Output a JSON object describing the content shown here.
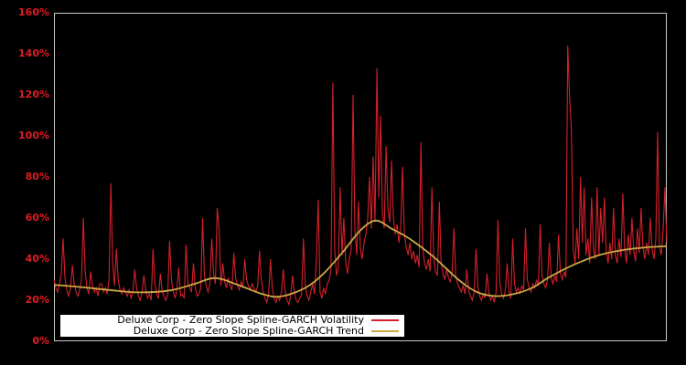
{
  "window": {
    "background_color": "#000000",
    "plot_border_color": "#c9c9c9",
    "axis_label_color": "#e01b24",
    "legend_background": "#ffffff",
    "legend_text_color": "#000000"
  },
  "chart_data": {
    "type": "line",
    "title": "",
    "xlabel": "",
    "ylabel": "",
    "ylim": [
      0,
      160
    ],
    "y_tick_step": 20,
    "y_ticks": [
      "0%",
      "20%",
      "40%",
      "60%",
      "80%",
      "100%",
      "120%",
      "140%",
      "160%"
    ],
    "x_tick_labels_visible": false,
    "grid": false,
    "legend_position": "bottom-left",
    "unit": "percent",
    "series": [
      {
        "name": "Deluxe Corp - Zero Slope Spline-GARCH Volatility",
        "color": "#d4202a",
        "style": "spiky-line",
        "values": [
          30,
          26,
          24,
          28,
          33,
          50,
          31,
          25,
          22,
          26,
          37,
          28,
          24,
          22,
          25,
          30,
          60,
          34,
          26,
          23,
          34,
          27,
          24,
          26,
          22,
          28,
          28,
          24,
          26,
          23,
          30,
          77,
          38,
          27,
          45,
          30,
          25,
          23,
          26,
          24,
          22,
          25,
          21,
          24,
          35,
          26,
          22,
          20,
          24,
          32,
          25,
          21,
          23,
          20,
          45,
          28,
          23,
          21,
          33,
          24,
          22,
          20,
          23,
          49,
          30,
          24,
          21,
          25,
          36,
          22,
          23,
          21,
          47,
          28,
          26,
          24,
          38,
          26,
          22,
          23,
          26,
          60,
          32,
          27,
          24,
          28,
          50,
          33,
          28,
          65,
          55,
          27,
          38,
          29,
          26,
          31,
          27,
          25,
          43,
          31,
          27,
          25,
          29,
          26,
          40,
          30,
          27,
          25,
          28,
          26,
          24,
          27,
          44,
          30,
          24,
          21,
          19,
          23,
          40,
          26,
          21,
          19,
          22,
          20,
          24,
          35,
          24,
          20,
          18,
          22,
          32,
          24,
          20,
          19,
          21,
          23,
          50,
          27,
          22,
          20,
          24,
          28,
          23,
          40,
          69,
          24,
          21,
          26,
          23,
          28,
          30,
          35,
          126,
          45,
          32,
          36,
          75,
          42,
          60,
          38,
          33,
          40,
          45,
          120,
          55,
          42,
          68,
          45,
          40,
          48,
          52,
          60,
          80,
          55,
          90,
          58,
          133,
          70,
          110,
          62,
          55,
          95,
          65,
          58,
          88,
          60,
          52,
          57,
          48,
          55,
          85,
          52,
          46,
          42,
          48,
          40,
          44,
          38,
          42,
          36,
          97,
          45,
          38,
          35,
          40,
          34,
          75,
          40,
          34,
          32,
          68,
          38,
          33,
          30,
          35,
          31,
          29,
          33,
          55,
          32,
          28,
          26,
          24,
          27,
          23,
          35,
          25,
          22,
          20,
          24,
          45,
          27,
          22,
          20,
          23,
          21,
          33,
          24,
          20,
          22,
          19,
          24,
          59,
          28,
          23,
          21,
          25,
          38,
          24,
          21,
          50,
          28,
          24,
          26,
          23,
          27,
          25,
          55,
          30,
          26,
          24,
          28,
          26,
          30,
          27,
          57,
          32,
          28,
          26,
          30,
          48,
          31,
          28,
          32,
          29,
          52,
          33,
          30,
          34,
          31,
          144,
          119,
          103,
          45,
          38,
          55,
          40,
          80,
          48,
          75,
          42,
          50,
          38,
          70,
          45,
          40,
          75,
          42,
          65,
          48,
          70,
          44,
          38,
          48,
          40,
          65,
          42,
          38,
          50,
          41,
          72,
          45,
          38,
          52,
          42,
          60,
          44,
          39,
          55,
          43,
          65,
          46,
          40,
          48,
          42,
          60,
          45,
          40,
          50,
          102,
          46,
          42,
          55,
          75,
          48
        ]
      },
      {
        "name": "Deluxe Corp - Zero Slope Spline-GARCH Trend",
        "color": "#c9a845",
        "style": "smooth-line",
        "keypoints": [
          [
            0.0,
            27.5
          ],
          [
            0.04,
            26.5
          ],
          [
            0.09,
            25.0
          ],
          [
            0.14,
            23.8
          ],
          [
            0.19,
            24.8
          ],
          [
            0.23,
            28.0
          ],
          [
            0.263,
            30.8
          ],
          [
            0.3,
            27.5
          ],
          [
            0.34,
            23.0
          ],
          [
            0.37,
            21.8
          ],
          [
            0.41,
            26.0
          ],
          [
            0.44,
            33.0
          ],
          [
            0.47,
            43.0
          ],
          [
            0.5,
            54.0
          ],
          [
            0.525,
            58.8
          ],
          [
            0.55,
            55.0
          ],
          [
            0.58,
            50.0
          ],
          [
            0.62,
            41.0
          ],
          [
            0.66,
            30.0
          ],
          [
            0.69,
            24.0
          ],
          [
            0.72,
            22.0
          ],
          [
            0.75,
            23.0
          ],
          [
            0.78,
            26.0
          ],
          [
            0.81,
            31.5
          ],
          [
            0.85,
            37.5
          ],
          [
            0.89,
            42.0
          ],
          [
            0.93,
            44.5
          ],
          [
            0.97,
            45.8
          ],
          [
            1.0,
            46.3
          ]
        ]
      }
    ]
  }
}
